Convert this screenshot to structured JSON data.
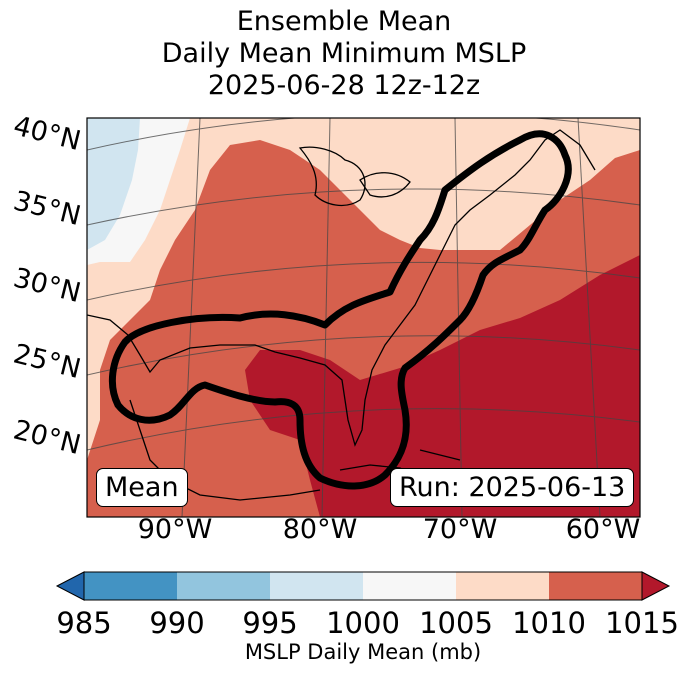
{
  "title": {
    "line1": "Ensemble Mean",
    "line2": "Daily Mean Minimum MSLP",
    "line3": "2025-06-28 12z-12z"
  },
  "map": {
    "region": "Gulf of Mexico, Eastern US and Western Atlantic",
    "lat_labels": [
      "40°N",
      "35°N",
      "30°N",
      "25°N",
      "20°N"
    ],
    "lon_labels": [
      "90°W",
      "80°W",
      "70°W",
      "60°W"
    ],
    "contour_description": "black outline of ensemble mean region",
    "fill_levels_mb": [
      985,
      990,
      995,
      1000,
      1005,
      1010,
      1015
    ]
  },
  "badges": {
    "mean": "Mean",
    "run": "Run: 2025-06-13"
  },
  "colorbar": {
    "ticks": [
      "985",
      "990",
      "995",
      "1000",
      "1005",
      "1010",
      "1015"
    ],
    "label": "MSLP Daily Mean (mb)",
    "colors": [
      "#2166ac",
      "#4393c3",
      "#92c5de",
      "#d1e5f0",
      "#f7f7f7",
      "#fddbc7",
      "#d6604d",
      "#b2182b"
    ]
  }
}
